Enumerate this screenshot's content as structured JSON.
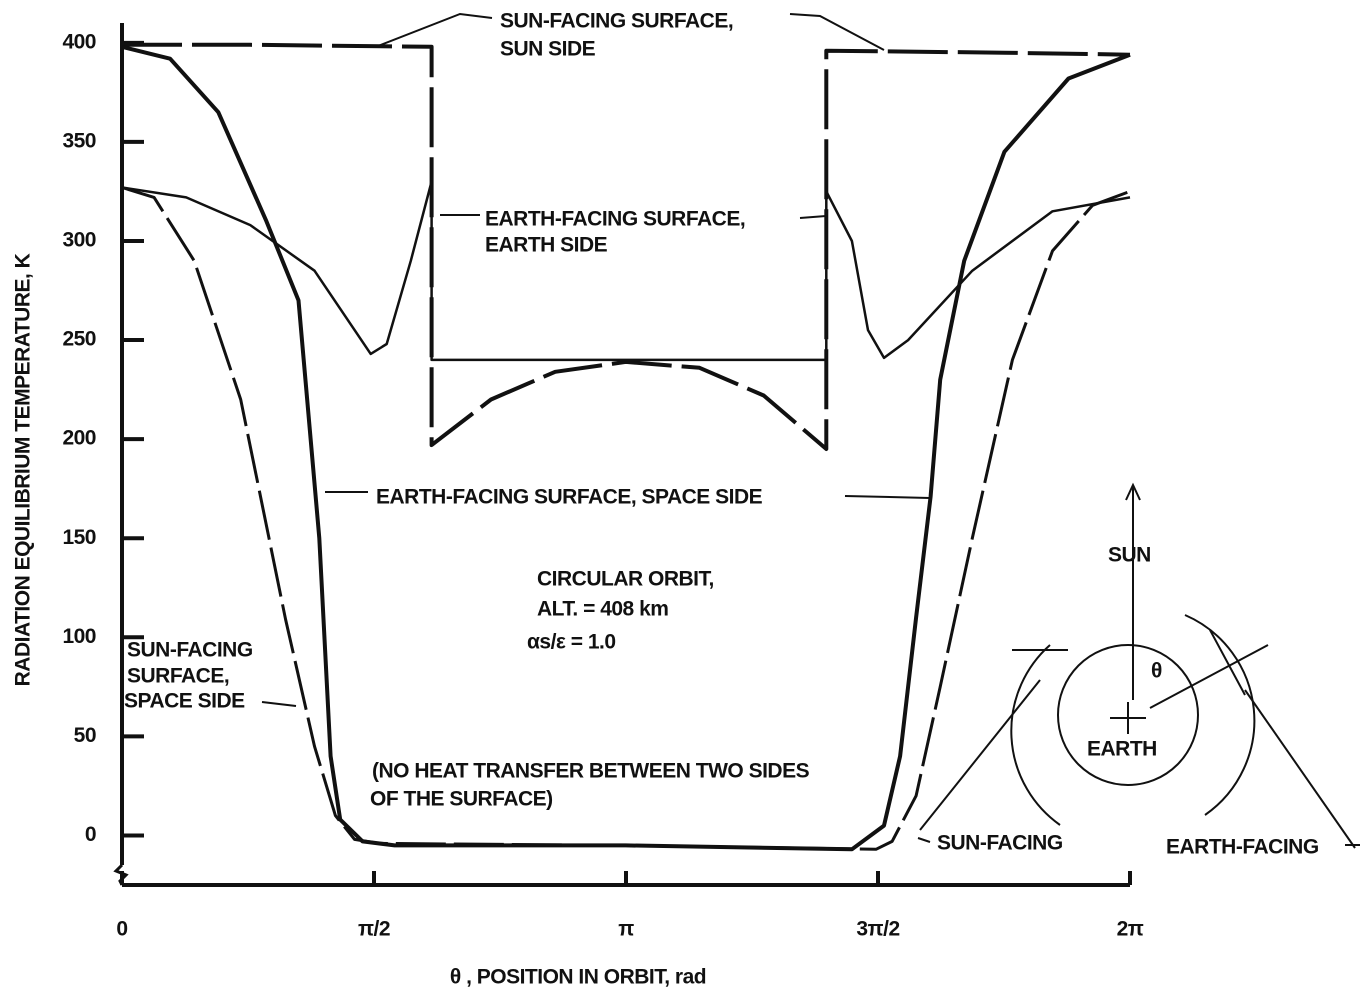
{
  "chart_data": {
    "type": "line",
    "ylabel": "RADIATION EQUILIBRIUM TEMPERATURE, K",
    "xlabel": "θ , POSITION IN ORBIT, rad",
    "xlim": [
      0,
      6.2832
    ],
    "ylim": [
      -25,
      410
    ],
    "xticks": [
      0,
      {
        "value": 1.5708,
        "label": "π/2"
      },
      {
        "value": 3.1416,
        "label": "π"
      },
      {
        "value": 4.7124,
        "label": "3π/2"
      },
      {
        "value": 6.2832,
        "label": "2π"
      }
    ],
    "yticks": [
      0,
      50,
      100,
      150,
      200,
      250,
      300,
      350,
      400
    ],
    "series": [
      {
        "color": "#111111",
        "x": [
          0,
          0.8,
          1.93,
          1.93,
          2.3,
          2.7,
          3.14,
          3.6,
          4.0,
          4.39,
          4.39,
          5.5,
          6.2832
        ],
        "values": [
          399,
          399,
          398,
          197,
          220,
          234,
          239,
          236,
          222,
          195,
          396,
          395,
          394
        ]
      },
      {
        "color": "#111111",
        "x": [
          0,
          0.4,
          0.8,
          1.2,
          1.45,
          1.55,
          1.65,
          1.8,
          1.93,
          1.93,
          4.39,
          4.39,
          4.55,
          4.65,
          4.75,
          4.9,
          5.3,
          5.8,
          6.2832
        ],
        "values": [
          327,
          322,
          308,
          285,
          255,
          243,
          248,
          290,
          330,
          240,
          240,
          325,
          300,
          255,
          241,
          250,
          285,
          315,
          322
        ]
      },
      {
        "color": "#111111",
        "x": [
          0,
          0.3,
          0.6,
          0.9,
          1.1,
          1.23,
          1.3,
          1.36,
          1.5,
          1.7,
          3.14,
          4.55,
          4.75,
          4.85,
          4.95,
          5.04,
          5.1,
          5.25,
          5.5,
          5.9,
          6.2832
        ],
        "values": [
          398,
          392,
          365,
          310,
          270,
          150,
          40,
          8,
          -3,
          -5,
          -5,
          -7,
          5,
          40,
          110,
          171,
          230,
          290,
          345,
          382,
          394
        ]
      },
      {
        "color": "#111111",
        "x": [
          0,
          0.2,
          0.45,
          0.74,
          1.02,
          1.2,
          1.33,
          1.45,
          1.6,
          3.14,
          4.7,
          4.8,
          4.95,
          5.1,
          5.3,
          5.55,
          5.8,
          6.05,
          6.2832
        ],
        "values": [
          327,
          322,
          290,
          220,
          109,
          45,
          10,
          -2,
          -4,
          -5,
          -7,
          -3,
          20,
          75,
          150,
          240,
          295,
          318,
          325
        ]
      }
    ],
    "annotations": [
      "SUN-FACING SURFACE,",
      "SUN SIDE",
      "EARTH-FACING SURFACE,",
      "EARTH SIDE",
      "EARTH-FACING SURFACE, SPACE SIDE",
      "CIRCULAR ORBIT,",
      "ALT. = 408 km",
      "αs/ε = 1.0",
      "SUN-FACING",
      "SURFACE,",
      "SPACE SIDE",
      "(NO HEAT TRANSFER BETWEEN TWO SIDES",
      "OF THE SURFACE)",
      "SUN",
      "θ",
      "EARTH",
      "SUN-FACING",
      "EARTH-FACING"
    ]
  }
}
